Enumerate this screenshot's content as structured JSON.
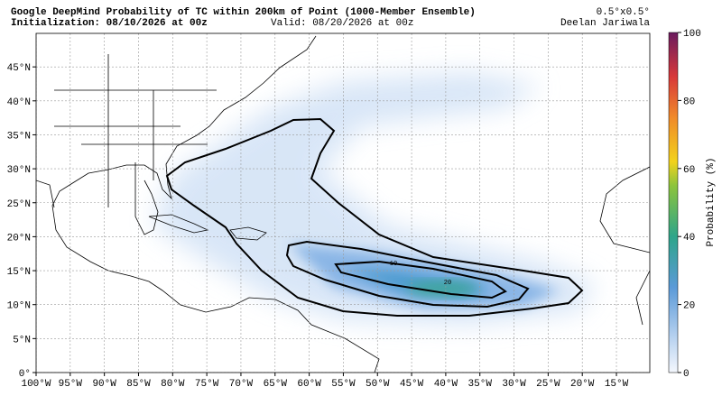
{
  "header": {
    "title": "Google DeepMind Probability of TC within 200km of Point (1000-Member Ensemble)",
    "initialization": "Initialization: 08/10/2026 at 00z",
    "valid": "Valid: 08/20/2026 at 00z",
    "resolution": "0.5°x0.5°",
    "author": "Deelan Jariwala"
  },
  "map": {
    "lon_ticks": [
      {
        "value": -100,
        "label": "100°W"
      },
      {
        "value": -95,
        "label": "95°W"
      },
      {
        "value": -90,
        "label": "90°W"
      },
      {
        "value": -85,
        "label": "85°W"
      },
      {
        "value": -80,
        "label": "80°W"
      },
      {
        "value": -75,
        "label": "75°W"
      },
      {
        "value": -70,
        "label": "70°W"
      },
      {
        "value": -65,
        "label": "65°W"
      },
      {
        "value": -60,
        "label": "60°W"
      },
      {
        "value": -55,
        "label": "55°W"
      },
      {
        "value": -50,
        "label": "50°W"
      },
      {
        "value": -45,
        "label": "45°W"
      },
      {
        "value": -40,
        "label": "40°W"
      },
      {
        "value": -35,
        "label": "35°W"
      },
      {
        "value": -30,
        "label": "30°W"
      },
      {
        "value": -25,
        "label": "25°W"
      },
      {
        "value": -20,
        "label": "20°W"
      },
      {
        "value": -15,
        "label": "15°W"
      }
    ],
    "lat_ticks": [
      {
        "value": 0,
        "label": "0°"
      },
      {
        "value": 5,
        "label": "5°N"
      },
      {
        "value": 10,
        "label": "10°N"
      },
      {
        "value": 15,
        "label": "15°N"
      },
      {
        "value": 20,
        "label": "20°N"
      },
      {
        "value": 25,
        "label": "25°N"
      },
      {
        "value": 30,
        "label": "30°N"
      },
      {
        "value": 35,
        "label": "35°N"
      },
      {
        "value": 40,
        "label": "40°N"
      },
      {
        "value": 45,
        "label": "45°N"
      }
    ],
    "contour_labels": [
      "10",
      "20"
    ]
  },
  "colorbar": {
    "label": "Probability (%)",
    "range": [
      0,
      100
    ],
    "ticks": [
      0,
      20,
      40,
      60,
      80,
      100
    ]
  }
}
